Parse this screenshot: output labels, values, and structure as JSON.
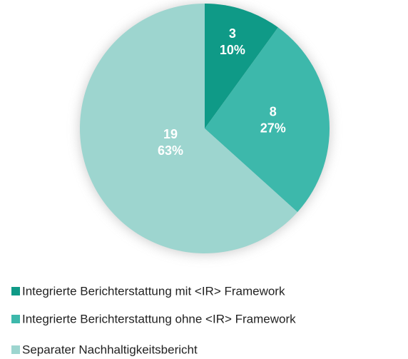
{
  "chart_data": {
    "type": "pie",
    "categories": [
      "Integrierte Berichterstattung mit <IR> Framework",
      "Integrierte Berichterstattung ohne <IR> Framework",
      "Separater Nachhaltigkeitsbericht"
    ],
    "values": [
      3,
      8,
      19
    ],
    "percentage_labels": [
      "10%",
      "27%",
      "63%"
    ],
    "colors": [
      "#0f9a87",
      "#3db8ab",
      "#9dd5cf"
    ],
    "legend": "bottom"
  }
}
